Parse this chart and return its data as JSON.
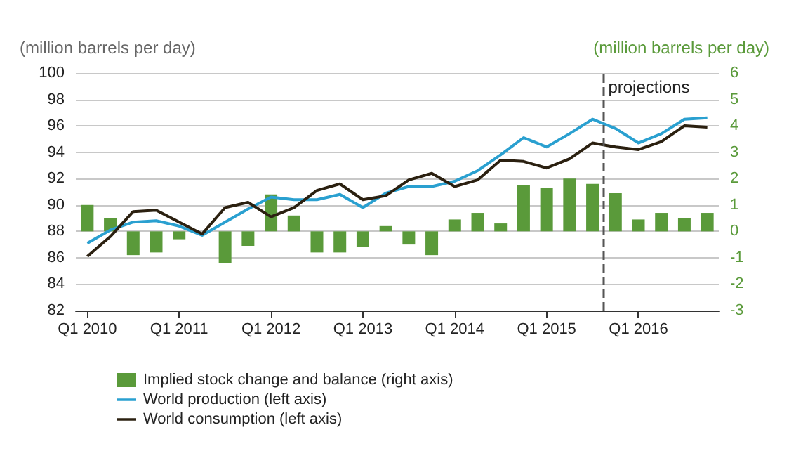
{
  "chart_data": {
    "type": "bar",
    "ylabel": "(million barrels per day)",
    "y2label": "(million barrels per day)",
    "categories": [
      "Q1 2010",
      null,
      null,
      null,
      "Q1 2011",
      null,
      null,
      null,
      "Q1 2012",
      null,
      null,
      null,
      "Q1 2013",
      null,
      null,
      null,
      "Q1 2014",
      null,
      null,
      null,
      "Q1 2015",
      null,
      null,
      null,
      "Q1 2016",
      null,
      null,
      null
    ],
    "ylim": [
      82,
      100
    ],
    "yticks": [
      82,
      84,
      86,
      88,
      90,
      92,
      94,
      96,
      98,
      100
    ],
    "y2lim": [
      -3,
      6
    ],
    "y2ticks": [
      -3,
      -2,
      -1,
      0,
      1,
      2,
      3,
      4,
      5,
      6
    ],
    "series": [
      {
        "name": "Implied stock change and balance (right axis)",
        "axis": "y2",
        "color": "#5a9a3a",
        "values": [
          1.0,
          0.5,
          -0.9,
          -0.8,
          -0.3,
          0,
          -1.2,
          -0.55,
          1.4,
          0.6,
          -0.8,
          -0.8,
          -0.6,
          0.2,
          -0.5,
          -0.9,
          0.45,
          0.7,
          0.3,
          1.75,
          1.65,
          2.0,
          1.8,
          1.45,
          0.45,
          0.7,
          0.5,
          0.7
        ]
      },
      {
        "name": "World production (left axis)",
        "type": "line",
        "color": "#2aa0d0",
        "values": [
          87.1,
          88.1,
          88.7,
          88.8,
          88.4,
          87.7,
          88.7,
          89.7,
          90.6,
          90.4,
          90.4,
          90.8,
          89.8,
          90.9,
          91.4,
          91.4,
          91.8,
          92.6,
          93.8,
          95.1,
          94.4,
          95.4,
          96.5,
          95.8,
          94.7,
          95.4,
          96.5,
          96.6
        ]
      },
      {
        "name": "World consumption (left axis)",
        "type": "line",
        "color": "#2b2010",
        "values": [
          86.1,
          87.6,
          89.5,
          89.6,
          88.7,
          87.8,
          89.8,
          90.2,
          89.1,
          89.8,
          91.1,
          91.6,
          90.4,
          90.7,
          91.9,
          92.4,
          91.4,
          91.9,
          93.4,
          93.3,
          92.8,
          93.5,
          94.7,
          94.4,
          94.2,
          94.8,
          96.0,
          95.9
        ]
      }
    ],
    "annotations": [
      "projections"
    ],
    "grid": "y",
    "legend": "bottom left"
  }
}
